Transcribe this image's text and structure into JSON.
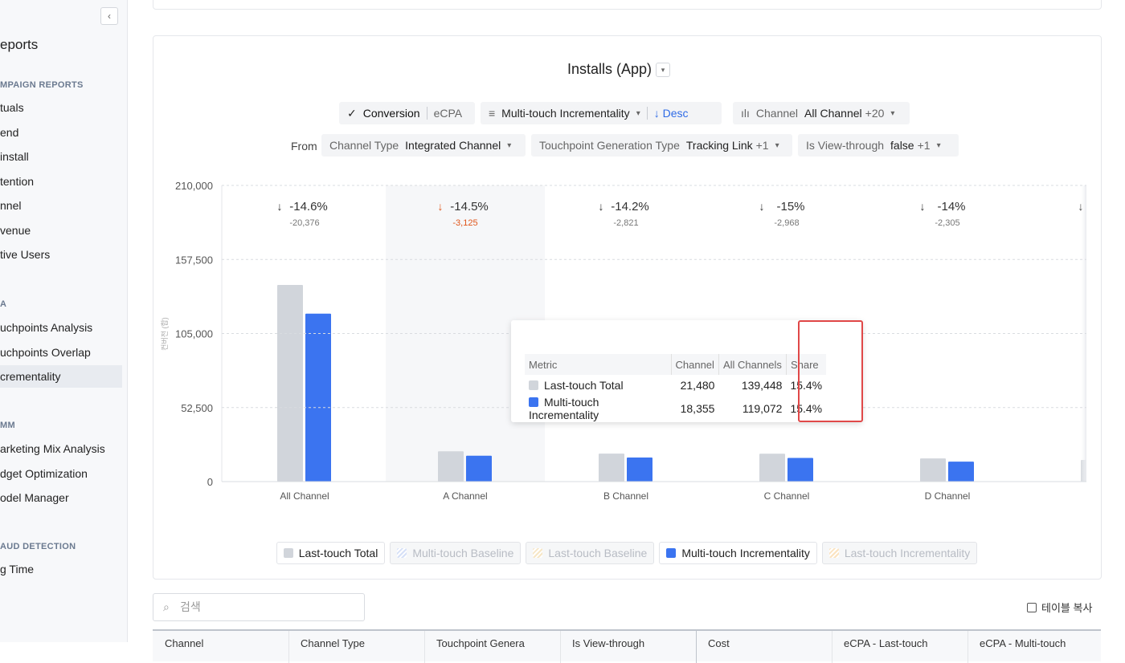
{
  "sidebar": {
    "title": "eports",
    "selected": [
      1,
      2
    ],
    "sections": [
      {
        "header": "MPAIGN REPORTS",
        "items": [
          "tuals",
          "end",
          "install",
          "tention",
          "nnel",
          "venue",
          "tive Users"
        ]
      },
      {
        "header": "A",
        "items": [
          "uchpoints Analysis",
          "uchpoints Overlap",
          "crementality"
        ]
      },
      {
        "header": "MM",
        "items": [
          "arketing Mix Analysis",
          "dget Optimization",
          "odel Manager"
        ]
      },
      {
        "header": "AUD DETECTION",
        "items": [
          "g Time"
        ]
      }
    ]
  },
  "filters": {
    "metric": "Conversion",
    "metric_alt": "eCPA",
    "sort": "Multi-touch Incrementality",
    "order": "Desc",
    "group_label": "Channel",
    "group_value": "All Channel",
    "group_more": "+20",
    "from": "From",
    "f1_label": "Channel Type",
    "f1_value": "Integrated Channel",
    "f2_label": "Touchpoint Generation Type",
    "f2_value": "Tracking Link",
    "f2_more": "+1",
    "f3_label": "Is View-through",
    "f3_value": "false",
    "f3_more": "+1"
  },
  "chart_data": {
    "type": "bar",
    "title": "Installs (App)",
    "y_label": "컨버전 (합)",
    "categories": [
      "All Channel",
      "A Channel",
      "B Channel",
      "C Channel",
      "D Channel",
      null
    ],
    "series": [
      {
        "name": "Last-touch Total",
        "color": "#d1d5db",
        "values": [
          139448,
          21480,
          19866,
          19787,
          16464,
          15400
        ]
      },
      {
        "name": "Multi-touch Incrementality",
        "color": "#3b74f0",
        "values": [
          119072,
          18355,
          17045,
          16819,
          14159,
          null
        ]
      }
    ],
    "legend_inactive": [
      {
        "name": "Last-touch Incrementality",
        "color": "#fbe3c0"
      },
      {
        "name": "Last-touch Baseline",
        "color": "#f6e6c6"
      },
      {
        "name": "Multi-touch Baseline",
        "color": "#d6e0f7"
      }
    ],
    "annotations": [
      {
        "percent": "-14.6%",
        "diff": "-20,376"
      },
      {
        "percent": "-14.5%",
        "diff": "-3,125"
      },
      {
        "percent": "-14.2%",
        "diff": "-2,821"
      },
      {
        "percent": "-15%",
        "diff": "-2,968"
      },
      {
        "percent": "-14%",
        "diff": "-2,305"
      }
    ],
    "highlight": 1,
    "highlight_color": "#e0561b",
    "ylim": [
      0,
      210000
    ],
    "yticks": [
      0,
      {
        "value": 52500,
        "label": "52,500"
      },
      {
        "value": 105000,
        "label": "105,000"
      },
      {
        "value": 157500,
        "label": "157,500"
      },
      {
        "value": 210000,
        "label": "210,000"
      }
    ],
    "grid": true
  },
  "tooltip": {
    "headers": [
      "Metric",
      "Channel",
      "All Channels",
      "Share"
    ],
    "rows": [
      [
        "Last-touch Total",
        "21,480",
        "139,448",
        "15.4%"
      ],
      [
        "Multi-touch Incrementality",
        "18,355",
        "119,072",
        "15.4%"
      ]
    ]
  },
  "table": {
    "search_placeholder": "검색",
    "copy": "테이블 복사",
    "headers": [
      "Channel",
      "Channel Type",
      "Touchpoint Genera",
      "Is View-through",
      "Cost",
      "eCPA - Last-touch",
      "eCPA - Multi-touch"
    ]
  }
}
